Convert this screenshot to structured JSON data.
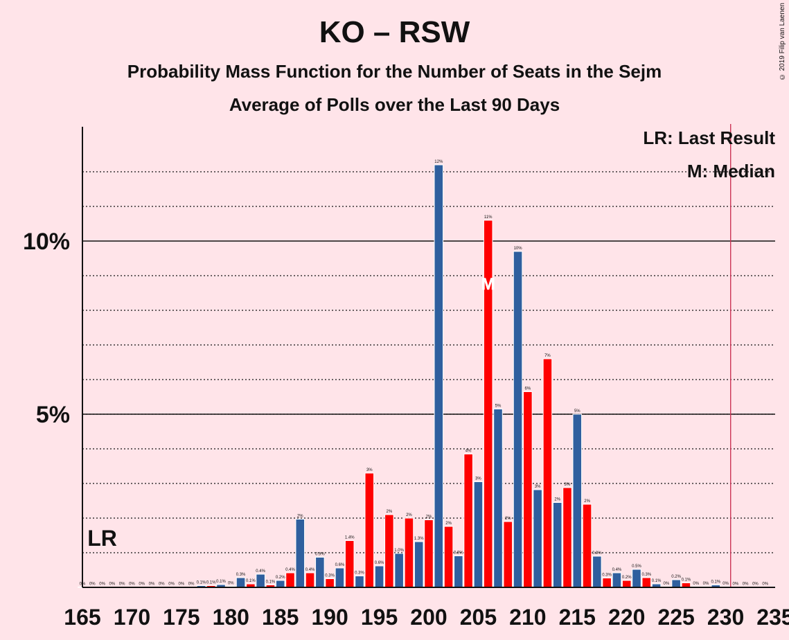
{
  "title": "KO – RSW",
  "subtitle": "Probability Mass Function for the Number of Seats in the Sejm",
  "subtitle2": "Average of Polls over the Last 90 Days",
  "copyright": "© 2019 Filip van Laenen",
  "legend": {
    "lr": "LR: Last Result",
    "m": "M: Median"
  },
  "colors": {
    "background": "#ffe4e9",
    "red": "#ff0000",
    "blue": "#2f5f9e",
    "lr_line": "#cc3355"
  },
  "chart_data": {
    "type": "bar",
    "xlim": [
      165,
      235
    ],
    "ylim": [
      0,
      13.3
    ],
    "x_ticks": [
      165,
      170,
      175,
      180,
      185,
      190,
      195,
      200,
      205,
      210,
      215,
      220,
      225,
      230,
      235
    ],
    "x_tick_labels": [
      "165",
      "170",
      "175",
      "180",
      "185",
      "190",
      "195",
      "200",
      "205",
      "210",
      "215",
      "220",
      "225",
      "230",
      "235"
    ],
    "y_ticks": [
      5,
      10
    ],
    "y_tick_labels": [
      "5%",
      "10%"
    ],
    "y_minor_ticks": [
      1,
      2,
      3,
      4,
      6,
      7,
      8,
      9,
      11,
      12
    ],
    "last_result": {
      "x": 167,
      "label": "LR"
    },
    "majority_line": 231,
    "median": {
      "x": 206,
      "label": "M"
    },
    "x": [
      165,
      166,
      167,
      168,
      169,
      170,
      171,
      172,
      173,
      174,
      175,
      176,
      177,
      178,
      179,
      180,
      181,
      182,
      183,
      184,
      185,
      186,
      187,
      188,
      189,
      190,
      191,
      192,
      193,
      194,
      195,
      196,
      197,
      198,
      199,
      200,
      201,
      202,
      203,
      204,
      205,
      206,
      207,
      208,
      209,
      210,
      211,
      212,
      213,
      214,
      215,
      216,
      217,
      218,
      219,
      220,
      221,
      222,
      223,
      224,
      225,
      226,
      227,
      228,
      229,
      230,
      231,
      232,
      233,
      234
    ],
    "values": [
      0,
      0,
      0,
      0,
      0,
      0,
      0,
      0,
      0,
      0,
      0,
      0,
      0.05,
      0.05,
      0.08,
      0.03,
      0.28,
      0.1,
      0.38,
      0.07,
      0.2,
      0.42,
      1.97,
      0.42,
      0.87,
      0.25,
      0.56,
      1.35,
      0.33,
      3.3,
      0.62,
      2.1,
      0.98,
      2.0,
      1.32,
      1.95,
      12.2,
      1.76,
      0.91,
      3.85,
      3.05,
      10.6,
      5.15,
      1.9,
      9.7,
      5.65,
      2.82,
      6.6,
      2.45,
      2.88,
      5.0,
      2.4,
      0.9,
      0.27,
      0.42,
      0.2,
      0.52,
      0.28,
      0.1,
      0.02,
      0.22,
      0.13,
      0.02,
      0.02,
      0.07,
      0.02,
      0.01,
      0.01,
      0.01,
      0.01
    ],
    "data_labels": [
      "0%",
      "0%",
      "0%",
      "0%",
      "0%",
      "0%",
      "0%",
      "0%",
      "0%",
      "0%",
      "0%",
      "0%",
      "0.1%",
      "0.1%",
      "0.1%",
      "0%",
      "0.3%",
      "0.1%",
      "0.4%",
      "0.1%",
      "0.2%",
      "0.4%",
      "2%",
      "0.4%",
      "0.9%",
      "0.3%",
      "0.6%",
      "1.4%",
      "0.3%",
      "3%",
      "0.6%",
      "2%",
      "1.0%",
      "2%",
      "1.3%",
      "2%",
      "12%",
      "2%",
      "0.9%",
      "4%",
      "3%",
      "11%",
      "5%",
      "2%",
      "10%",
      "6%",
      "3%",
      "7%",
      "2%",
      "3%",
      "5%",
      "2%",
      "0.9%",
      "0.3%",
      "0.4%",
      "0.2%",
      "0.5%",
      "0.3%",
      "0.1%",
      "0%",
      "0.2%",
      "0.1%",
      "0%",
      "0%",
      "0.1%",
      "0%",
      "0%",
      "0%",
      "0%",
      "0%"
    ]
  }
}
